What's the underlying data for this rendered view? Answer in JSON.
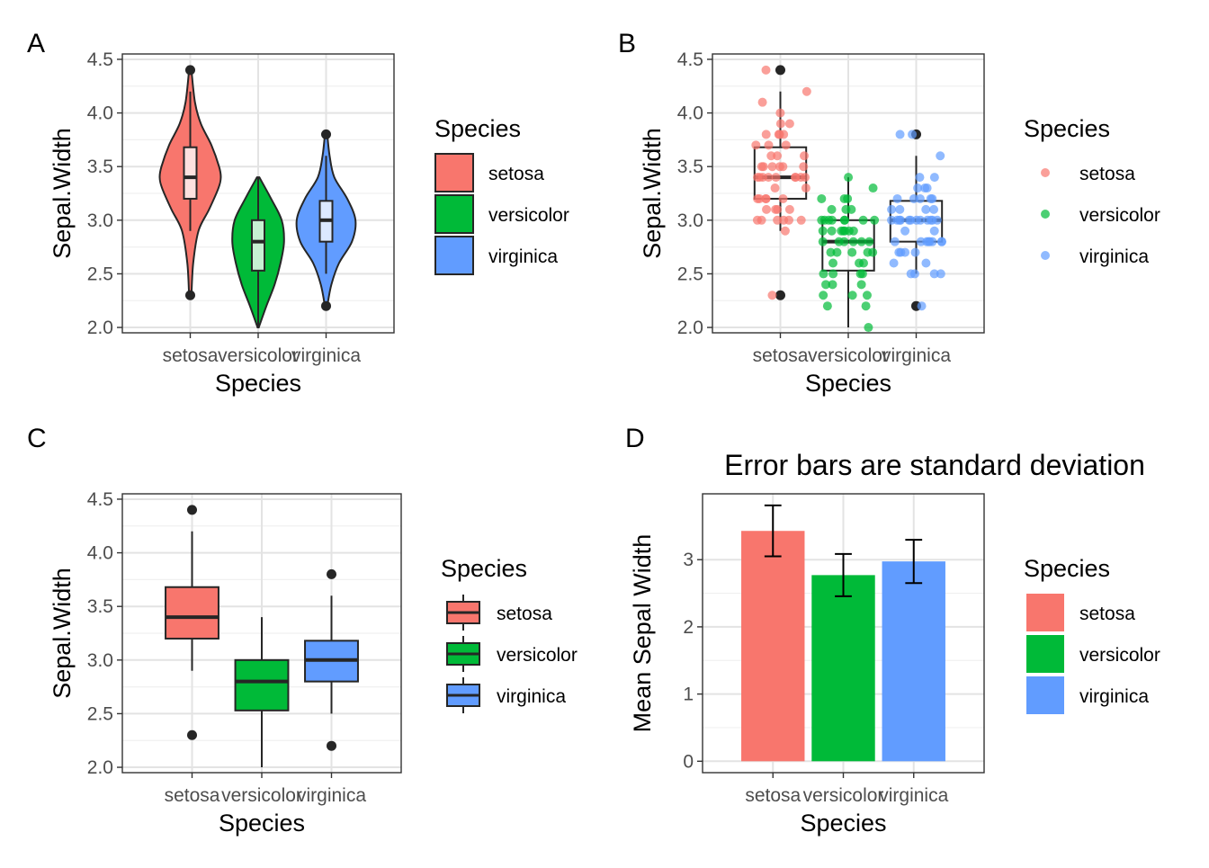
{
  "colors": {
    "setosa": "#F8766D",
    "versicolor": "#00BA38",
    "virginica": "#619CFF"
  },
  "chart_data": [
    {
      "tag": "A",
      "type": "violin",
      "categories": [
        "setosa",
        "versicolor",
        "virginica"
      ],
      "xlabel": "Species",
      "ylabel": "Sepal.Width",
      "ylim": [
        1.95,
        4.55
      ],
      "yticks": [
        2.0,
        2.5,
        3.0,
        3.5,
        4.0,
        4.5
      ],
      "ytick_labels": [
        "2.0",
        "2.5",
        "3.0",
        "3.5",
        "4.0",
        "4.5"
      ],
      "series": [
        {
          "name": "setosa",
          "density": [
            [
              2.3,
              0.02
            ],
            [
              2.6,
              0.05
            ],
            [
              2.9,
              0.14
            ],
            [
              3.1,
              0.32
            ],
            [
              3.3,
              0.48
            ],
            [
              3.4,
              0.52
            ],
            [
              3.5,
              0.49
            ],
            [
              3.7,
              0.36
            ],
            [
              3.9,
              0.18
            ],
            [
              4.1,
              0.08
            ],
            [
              4.4,
              0.02
            ]
          ],
          "box": {
            "q1": 3.2,
            "median": 3.4,
            "q3": 3.68,
            "whisker_low": 2.9,
            "whisker_high": 4.2
          },
          "outliers": [
            4.4,
            2.3
          ]
        },
        {
          "name": "versicolor",
          "density": [
            [
              2.0,
              0.01
            ],
            [
              2.2,
              0.14
            ],
            [
              2.4,
              0.28
            ],
            [
              2.6,
              0.38
            ],
            [
              2.8,
              0.44
            ],
            [
              3.0,
              0.4
            ],
            [
              3.2,
              0.22
            ],
            [
              3.4,
              0.02
            ]
          ],
          "box": {
            "q1": 2.53,
            "median": 2.8,
            "q3": 3.0,
            "whisker_low": 2.0,
            "whisker_high": 3.4
          },
          "outliers": []
        },
        {
          "name": "virginica",
          "density": [
            [
              2.2,
              0.02
            ],
            [
              2.4,
              0.09
            ],
            [
              2.6,
              0.22
            ],
            [
              2.8,
              0.44
            ],
            [
              3.0,
              0.5
            ],
            [
              3.2,
              0.36
            ],
            [
              3.4,
              0.14
            ],
            [
              3.6,
              0.06
            ],
            [
              3.8,
              0.02
            ]
          ],
          "box": {
            "q1": 2.8,
            "median": 3.0,
            "q3": 3.18,
            "whisker_low": 2.5,
            "whisker_high": 3.6
          },
          "outliers": [
            3.8,
            2.2
          ]
        }
      ],
      "legend": {
        "title": "Species",
        "items": [
          "setosa",
          "versicolor",
          "virginica"
        ]
      }
    },
    {
      "tag": "B",
      "type": "box_jitter",
      "categories": [
        "setosa",
        "versicolor",
        "virginica"
      ],
      "xlabel": "Species",
      "ylabel": "Sepal.Width",
      "ylim": [
        1.95,
        4.55
      ],
      "yticks": [
        2.0,
        2.5,
        3.0,
        3.5,
        4.0,
        4.5
      ],
      "ytick_labels": [
        "2.0",
        "2.5",
        "3.0",
        "3.5",
        "4.0",
        "4.5"
      ],
      "series": [
        {
          "name": "setosa",
          "box": {
            "q1": 3.2,
            "median": 3.4,
            "q3": 3.68,
            "whisker_low": 2.9,
            "whisker_high": 4.2
          },
          "outliers": [
            4.4,
            2.3
          ],
          "points": [
            3.5,
            3.0,
            3.2,
            3.1,
            3.6,
            3.9,
            3.4,
            3.4,
            2.9,
            3.1,
            3.7,
            3.4,
            3.0,
            3.0,
            4.0,
            4.4,
            3.9,
            3.5,
            3.8,
            3.8,
            3.4,
            3.7,
            3.6,
            3.3,
            3.4,
            3.0,
            3.4,
            3.5,
            3.4,
            3.2,
            3.1,
            3.4,
            4.1,
            4.2,
            3.1,
            3.2,
            3.5,
            3.6,
            3.0,
            3.4,
            3.5,
            2.3,
            3.2,
            3.5,
            3.8,
            3.0,
            3.8,
            3.2,
            3.7,
            3.3
          ]
        },
        {
          "name": "versicolor",
          "box": {
            "q1": 2.53,
            "median": 2.8,
            "q3": 3.0,
            "whisker_low": 2.0,
            "whisker_high": 3.4
          },
          "outliers": [],
          "points": [
            3.2,
            3.2,
            3.1,
            2.3,
            2.8,
            2.8,
            3.3,
            2.4,
            2.9,
            2.7,
            2.0,
            3.0,
            2.2,
            2.9,
            2.9,
            3.1,
            3.0,
            2.7,
            2.2,
            2.5,
            3.2,
            2.8,
            2.5,
            2.8,
            2.9,
            3.0,
            2.8,
            3.0,
            2.9,
            2.6,
            2.4,
            2.4,
            2.7,
            2.7,
            3.0,
            3.4,
            3.1,
            2.3,
            3.0,
            2.5,
            2.6,
            3.0,
            2.6,
            2.3,
            2.7,
            3.0,
            2.9,
            2.9,
            2.5,
            2.8
          ]
        },
        {
          "name": "virginica",
          "box": {
            "q1": 2.8,
            "median": 3.0,
            "q3": 3.18,
            "whisker_low": 2.5,
            "whisker_high": 3.6
          },
          "outliers": [
            3.8,
            2.2
          ],
          "points": [
            3.3,
            2.7,
            3.0,
            2.9,
            3.0,
            3.0,
            2.5,
            2.9,
            2.5,
            3.6,
            3.2,
            2.7,
            3.0,
            2.5,
            2.8,
            3.2,
            3.0,
            3.8,
            2.6,
            2.2,
            3.2,
            2.8,
            2.8,
            2.7,
            3.3,
            3.2,
            2.8,
            3.0,
            2.8,
            3.0,
            2.8,
            3.8,
            2.8,
            2.8,
            2.6,
            3.0,
            3.4,
            3.1,
            3.0,
            3.1,
            3.1,
            3.1,
            2.7,
            3.2,
            3.3,
            3.0,
            2.5,
            3.0,
            3.4,
            3.0
          ]
        }
      ],
      "legend": {
        "title": "Species",
        "items": [
          "setosa",
          "versicolor",
          "virginica"
        ]
      }
    },
    {
      "tag": "C",
      "type": "box",
      "categories": [
        "setosa",
        "versicolor",
        "virginica"
      ],
      "xlabel": "Species",
      "ylabel": "Sepal.Width",
      "ylim": [
        1.95,
        4.55
      ],
      "yticks": [
        2.0,
        2.5,
        3.0,
        3.5,
        4.0,
        4.5
      ],
      "ytick_labels": [
        "2.0",
        "2.5",
        "3.0",
        "3.5",
        "4.0",
        "4.5"
      ],
      "series": [
        {
          "name": "setosa",
          "box": {
            "q1": 3.2,
            "median": 3.4,
            "q3": 3.68,
            "whisker_low": 2.9,
            "whisker_high": 4.2
          },
          "outliers": [
            4.4,
            2.3
          ]
        },
        {
          "name": "versicolor",
          "box": {
            "q1": 2.53,
            "median": 2.8,
            "q3": 3.0,
            "whisker_low": 2.0,
            "whisker_high": 3.4
          },
          "outliers": []
        },
        {
          "name": "virginica",
          "box": {
            "q1": 2.8,
            "median": 3.0,
            "q3": 3.18,
            "whisker_low": 2.5,
            "whisker_high": 3.6
          },
          "outliers": [
            3.8,
            2.2
          ]
        }
      ],
      "legend": {
        "title": "Species",
        "items": [
          "setosa",
          "versicolor",
          "virginica"
        ]
      }
    },
    {
      "tag": "D",
      "type": "bar",
      "title": "Error bars are standard deviation",
      "categories": [
        "setosa",
        "versicolor",
        "virginica"
      ],
      "xlabel": "Species",
      "ylabel": "Mean Sepal Width",
      "ylim": [
        -0.17,
        3.98
      ],
      "yticks": [
        0,
        1,
        2,
        3
      ],
      "ytick_labels": [
        "0",
        "1",
        "2",
        "3"
      ],
      "values": [
        3.428,
        2.77,
        2.974
      ],
      "errors": [
        0.379,
        0.314,
        0.322
      ],
      "legend": {
        "title": "Species",
        "items": [
          "setosa",
          "versicolor",
          "virginica"
        ]
      }
    }
  ]
}
